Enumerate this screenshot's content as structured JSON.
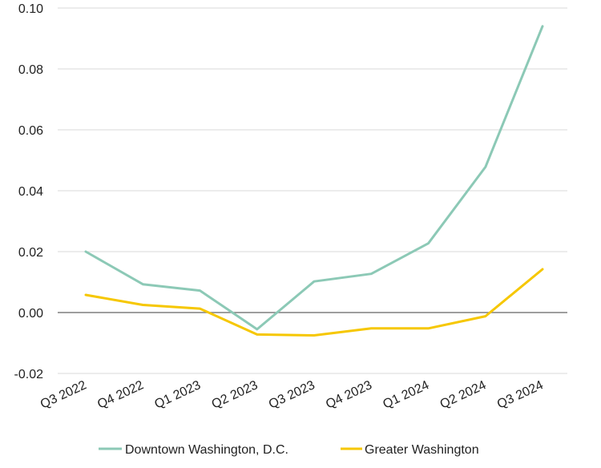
{
  "chart_data": {
    "type": "line",
    "title": "",
    "xlabel": "",
    "ylabel": "",
    "categories": [
      "Q3 2022",
      "Q4 2022",
      "Q1 2023",
      "Q2 2023",
      "Q3 2023",
      "Q4 2023",
      "Q1 2024",
      "Q2 2024",
      "Q3 2024"
    ],
    "ylim": [
      -0.02,
      0.1
    ],
    "yticks": [
      "-0.02",
      "0.00",
      "0.02",
      "0.04",
      "0.06",
      "0.08",
      "0.10"
    ],
    "grid": true,
    "legend_position": "bottom",
    "series": [
      {
        "name": "Downtown Washington, D.C.",
        "color": "#8CC9B6",
        "values": [
          0.02,
          0.0093,
          0.0072,
          -0.0055,
          0.0102,
          0.0127,
          0.0227,
          0.0478,
          0.094
        ]
      },
      {
        "name": "Greater Washington",
        "color": "#F6C700",
        "values": [
          0.0058,
          0.0025,
          0.0013,
          -0.0072,
          -0.0075,
          -0.0052,
          -0.0052,
          -0.0012,
          0.0142
        ]
      }
    ]
  }
}
